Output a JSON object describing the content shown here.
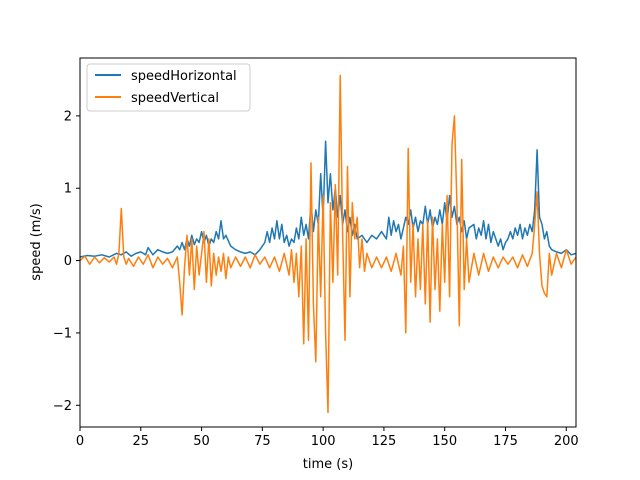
{
  "chart_data": {
    "type": "line",
    "xlabel": "time (s)",
    "ylabel": "speed (m/s)",
    "xlim": [
      0,
      204
    ],
    "ylim": [
      -2.3,
      2.8
    ],
    "xticks": [
      0,
      25,
      50,
      75,
      100,
      125,
      150,
      175,
      200
    ],
    "yticks": [
      -2,
      -1,
      0,
      1,
      2
    ],
    "grid": false,
    "legend_position": "top-left",
    "series": [
      {
        "name": "speedHorizontal",
        "color": "#1f77b4",
        "points": [
          [
            0,
            0.05
          ],
          [
            3,
            0.07
          ],
          [
            6,
            0.06
          ],
          [
            9,
            0.08
          ],
          [
            12,
            0.05
          ],
          [
            15,
            0.1
          ],
          [
            17,
            0.08
          ],
          [
            19,
            0.12
          ],
          [
            21,
            0.06
          ],
          [
            23,
            0.1
          ],
          [
            25,
            0.12
          ],
          [
            27,
            0.08
          ],
          [
            28,
            0.18
          ],
          [
            30,
            0.08
          ],
          [
            32,
            0.15
          ],
          [
            34,
            0.12
          ],
          [
            36,
            0.1
          ],
          [
            38,
            0.12
          ],
          [
            40,
            0.2
          ],
          [
            41,
            0.15
          ],
          [
            42,
            0.25
          ],
          [
            43,
            0.15
          ],
          [
            44,
            0.3
          ],
          [
            45,
            0.2
          ],
          [
            46,
            0.35
          ],
          [
            47,
            0.22
          ],
          [
            48,
            0.3
          ],
          [
            49,
            0.25
          ],
          [
            50,
            0.4
          ],
          [
            51,
            0.25
          ],
          [
            52,
            0.35
          ],
          [
            53,
            0.2
          ],
          [
            54,
            0.3
          ],
          [
            55,
            0.25
          ],
          [
            56,
            0.4
          ],
          [
            57,
            0.3
          ],
          [
            58,
            0.55
          ],
          [
            59,
            0.3
          ],
          [
            60,
            0.35
          ],
          [
            62,
            0.2
          ],
          [
            64,
            0.15
          ],
          [
            66,
            0.12
          ],
          [
            68,
            0.1
          ],
          [
            70,
            0.12
          ],
          [
            72,
            0.08
          ],
          [
            74,
            0.15
          ],
          [
            76,
            0.25
          ],
          [
            77,
            0.4
          ],
          [
            78,
            0.25
          ],
          [
            79,
            0.45
          ],
          [
            80,
            0.3
          ],
          [
            81,
            0.55
          ],
          [
            82,
            0.3
          ],
          [
            83,
            0.5
          ],
          [
            84,
            0.25
          ],
          [
            85,
            0.35
          ],
          [
            86,
            0.2
          ],
          [
            87,
            0.3
          ],
          [
            88,
            0.25
          ],
          [
            89,
            0.45
          ],
          [
            90,
            0.3
          ],
          [
            91,
            0.6
          ],
          [
            92,
            0.35
          ],
          [
            93,
            0.5
          ],
          [
            94,
            0.3
          ],
          [
            95,
            0.8
          ],
          [
            96,
            0.4
          ],
          [
            97,
            0.7
          ],
          [
            98,
            0.5
          ],
          [
            99,
            1.2
          ],
          [
            100,
            0.6
          ],
          [
            101,
            1.65
          ],
          [
            102,
            0.8
          ],
          [
            103,
            1.2
          ],
          [
            104,
            0.7
          ],
          [
            105,
            1.0
          ],
          [
            106,
            0.6
          ],
          [
            107,
            0.9
          ],
          [
            108,
            0.5
          ],
          [
            109,
            0.7
          ],
          [
            110,
            0.4
          ],
          [
            111,
            0.6
          ],
          [
            112,
            0.35
          ],
          [
            113,
            0.5
          ],
          [
            114,
            0.3
          ],
          [
            116,
            0.35
          ],
          [
            118,
            0.25
          ],
          [
            120,
            0.35
          ],
          [
            122,
            0.3
          ],
          [
            124,
            0.4
          ],
          [
            126,
            0.3
          ],
          [
            127,
            0.6
          ],
          [
            128,
            0.35
          ],
          [
            129,
            0.55
          ],
          [
            130,
            0.4
          ],
          [
            131,
            0.5
          ],
          [
            132,
            0.3
          ],
          [
            133,
            0.45
          ],
          [
            134,
            0.6
          ],
          [
            135,
            0.5
          ],
          [
            136,
            0.7
          ],
          [
            137,
            0.45
          ],
          [
            138,
            0.6
          ],
          [
            139,
            0.4
          ],
          [
            140,
            0.55
          ],
          [
            141,
            0.5
          ],
          [
            142,
            0.75
          ],
          [
            143,
            0.5
          ],
          [
            144,
            0.7
          ],
          [
            145,
            0.45
          ],
          [
            146,
            0.6
          ],
          [
            147,
            0.5
          ],
          [
            148,
            0.7
          ],
          [
            149,
            0.5
          ],
          [
            150,
            0.8
          ],
          [
            151,
            0.55
          ],
          [
            152,
            0.9
          ],
          [
            153,
            0.6
          ],
          [
            154,
            0.75
          ],
          [
            155,
            0.5
          ],
          [
            156,
            0.6
          ],
          [
            157,
            0.4
          ],
          [
            158,
            0.55
          ],
          [
            159,
            0.3
          ],
          [
            160,
            0.45
          ],
          [
            162,
            0.5
          ],
          [
            163,
            0.3
          ],
          [
            164,
            0.45
          ],
          [
            165,
            0.35
          ],
          [
            166,
            0.55
          ],
          [
            167,
            0.3
          ],
          [
            168,
            0.5
          ],
          [
            169,
            0.25
          ],
          [
            170,
            0.4
          ],
          [
            171,
            0.3
          ],
          [
            172,
            0.2
          ],
          [
            173,
            0.3
          ],
          [
            174,
            0.15
          ],
          [
            175,
            0.25
          ],
          [
            176,
            0.3
          ],
          [
            177,
            0.4
          ],
          [
            178,
            0.3
          ],
          [
            179,
            0.45
          ],
          [
            180,
            0.35
          ],
          [
            181,
            0.5
          ],
          [
            182,
            0.3
          ],
          [
            183,
            0.45
          ],
          [
            184,
            0.35
          ],
          [
            185,
            0.5
          ],
          [
            186,
            0.4
          ],
          [
            187,
            0.7
          ],
          [
            188,
            1.53
          ],
          [
            189,
            0.6
          ],
          [
            190,
            0.5
          ],
          [
            191,
            0.3
          ],
          [
            192,
            0.4
          ],
          [
            193,
            0.2
          ],
          [
            194,
            0.15
          ],
          [
            196,
            0.12
          ],
          [
            198,
            0.1
          ],
          [
            200,
            0.15
          ],
          [
            202,
            0.08
          ],
          [
            204,
            0.1
          ]
        ]
      },
      {
        "name": "speedVertical",
        "color": "#ff7f0e",
        "points": [
          [
            0,
            0.0
          ],
          [
            2,
            0.06
          ],
          [
            4,
            -0.05
          ],
          [
            6,
            0.05
          ],
          [
            8,
            -0.03
          ],
          [
            10,
            0.04
          ],
          [
            12,
            -0.02
          ],
          [
            14,
            0.05
          ],
          [
            15,
            -0.05
          ],
          [
            16,
            0.1
          ],
          [
            17,
            0.72
          ],
          [
            18,
            0.05
          ],
          [
            19,
            -0.05
          ],
          [
            20,
            0.03
          ],
          [
            22,
            -0.08
          ],
          [
            24,
            0.05
          ],
          [
            26,
            -0.05
          ],
          [
            28,
            0.08
          ],
          [
            30,
            -0.1
          ],
          [
            32,
            0.05
          ],
          [
            34,
            -0.05
          ],
          [
            36,
            0.03
          ],
          [
            38,
            -0.1
          ],
          [
            40,
            0.05
          ],
          [
            41,
            -0.3
          ],
          [
            42,
            -0.75
          ],
          [
            43,
            -0.1
          ],
          [
            44,
            0.35
          ],
          [
            45,
            -0.2
          ],
          [
            46,
            0.3
          ],
          [
            47,
            -0.4
          ],
          [
            48,
            0.2
          ],
          [
            49,
            -0.2
          ],
          [
            50,
            0.1
          ],
          [
            51,
            0.4
          ],
          [
            52,
            -0.3
          ],
          [
            53,
            0.3
          ],
          [
            54,
            -0.35
          ],
          [
            55,
            0.1
          ],
          [
            56,
            -0.2
          ],
          [
            57,
            0.05
          ],
          [
            58,
            -0.15
          ],
          [
            59,
            0.1
          ],
          [
            60,
            -0.25
          ],
          [
            61,
            0.05
          ],
          [
            62,
            -0.1
          ],
          [
            64,
            0.05
          ],
          [
            66,
            -0.08
          ],
          [
            68,
            0.05
          ],
          [
            70,
            -0.1
          ],
          [
            72,
            0.08
          ],
          [
            74,
            -0.05
          ],
          [
            76,
            0.05
          ],
          [
            78,
            -0.1
          ],
          [
            80,
            0.05
          ],
          [
            82,
            -0.15
          ],
          [
            84,
            0.1
          ],
          [
            86,
            -0.2
          ],
          [
            87,
            0.15
          ],
          [
            88,
            -0.3
          ],
          [
            89,
            0.1
          ],
          [
            90,
            -0.5
          ],
          [
            91,
            0.2
          ],
          [
            92,
            -1.15
          ],
          [
            93,
            0.3
          ],
          [
            94,
            -1.1
          ],
          [
            95,
            1.35
          ],
          [
            96,
            -0.6
          ],
          [
            97,
            -1.4
          ],
          [
            98,
            0.6
          ],
          [
            99,
            -0.5
          ],
          [
            100,
            0.9
          ],
          [
            101,
            -1.0
          ],
          [
            102,
            -2.1
          ],
          [
            103,
            0.8
          ],
          [
            104,
            -0.3
          ],
          [
            105,
            1.05
          ],
          [
            106,
            -0.2
          ],
          [
            107,
            2.56
          ],
          [
            108,
            0.4
          ],
          [
            109,
            -1.1
          ],
          [
            110,
            1.3
          ],
          [
            111,
            -0.5
          ],
          [
            112,
            0.8
          ],
          [
            113,
            0.3
          ],
          [
            114,
            0.6
          ],
          [
            115,
            -0.1
          ],
          [
            116,
            0.3
          ],
          [
            117,
            -0.15
          ],
          [
            118,
            0.1
          ],
          [
            120,
            -0.1
          ],
          [
            122,
            0.05
          ],
          [
            124,
            -0.1
          ],
          [
            126,
            0.05
          ],
          [
            128,
            -0.15
          ],
          [
            130,
            0.1
          ],
          [
            132,
            -0.2
          ],
          [
            133,
            0.2
          ],
          [
            134,
            -1.0
          ],
          [
            135,
            1.55
          ],
          [
            136,
            -0.3
          ],
          [
            137,
            0.5
          ],
          [
            138,
            -0.5
          ],
          [
            139,
            0.3
          ],
          [
            140,
            -0.4
          ],
          [
            141,
            0.5
          ],
          [
            142,
            -0.6
          ],
          [
            143,
            0.55
          ],
          [
            144,
            -0.85
          ],
          [
            145,
            0.6
          ],
          [
            146,
            -0.4
          ],
          [
            147,
            0.3
          ],
          [
            148,
            -0.7
          ],
          [
            149,
            0.5
          ],
          [
            150,
            -0.3
          ],
          [
            151,
            0.9
          ],
          [
            152,
            -0.5
          ],
          [
            153,
            1.6
          ],
          [
            154,
            2.0
          ],
          [
            155,
            0.8
          ],
          [
            156,
            -0.9
          ],
          [
            157,
            1.4
          ],
          [
            158,
            -0.4
          ],
          [
            159,
            0.3
          ],
          [
            160,
            -0.3
          ],
          [
            162,
            0.1
          ],
          [
            164,
            -0.2
          ],
          [
            166,
            0.1
          ],
          [
            168,
            -0.15
          ],
          [
            170,
            0.05
          ],
          [
            172,
            -0.1
          ],
          [
            174,
            0.05
          ],
          [
            176,
            -0.05
          ],
          [
            178,
            0.05
          ],
          [
            180,
            -0.1
          ],
          [
            182,
            0.08
          ],
          [
            184,
            -0.08
          ],
          [
            186,
            0.1
          ],
          [
            187,
            0.5
          ],
          [
            188,
            0.95
          ],
          [
            189,
            0.1
          ],
          [
            190,
            -0.35
          ],
          [
            191,
            -0.45
          ],
          [
            192,
            -0.5
          ],
          [
            193,
            0.1
          ],
          [
            194,
            -0.2
          ],
          [
            196,
            0.1
          ],
          [
            198,
            -0.1
          ],
          [
            200,
            0.15
          ],
          [
            202,
            -0.05
          ],
          [
            204,
            0.05
          ]
        ]
      }
    ]
  }
}
